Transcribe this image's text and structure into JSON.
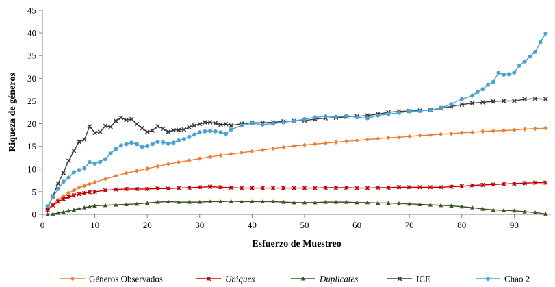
{
  "chart_data": {
    "type": "line",
    "title": "",
    "xlabel": "Esfuerzo de Muestreo",
    "ylabel": "Riqueza de géneros",
    "xlim": [
      0,
      97
    ],
    "ylim": [
      0,
      45
    ],
    "xticks": [
      0,
      10,
      20,
      30,
      40,
      50,
      60,
      70,
      80,
      90
    ],
    "yticks": [
      0,
      5,
      10,
      15,
      20,
      25,
      30,
      35,
      40,
      45
    ],
    "grid": false,
    "legend_position": "bottom",
    "series": [
      {
        "name": "Géneros Observados",
        "italic": false,
        "color": "#ED7D31",
        "marker": "diamond",
        "x": [
          1,
          2,
          3,
          4,
          5,
          6,
          7,
          8,
          9,
          10,
          12,
          14,
          16,
          18,
          20,
          22,
          24,
          26,
          28,
          30,
          32,
          34,
          36,
          38,
          40,
          42,
          44,
          46,
          48,
          50,
          52,
          54,
          56,
          58,
          60,
          62,
          64,
          66,
          68,
          70,
          72,
          74,
          76,
          78,
          80,
          82,
          84,
          86,
          88,
          90,
          92,
          94,
          96
        ],
        "y": [
          1,
          2.2,
          3.2,
          4,
          4.7,
          5.3,
          5.9,
          6.3,
          6.7,
          7.1,
          7.8,
          8.5,
          9.1,
          9.6,
          10.1,
          10.6,
          11.1,
          11.5,
          11.9,
          12.3,
          12.7,
          13,
          13.3,
          13.6,
          13.9,
          14.2,
          14.5,
          14.8,
          15.1,
          15.3,
          15.5,
          15.7,
          15.9,
          16.1,
          16.3,
          16.5,
          16.7,
          16.9,
          17,
          17.2,
          17.4,
          17.5,
          17.7,
          17.8,
          18,
          18.1,
          18.3,
          18.4,
          18.5,
          18.6,
          18.8,
          18.9,
          19
        ]
      },
      {
        "name": "Uniques",
        "italic": true,
        "color": "#C00000",
        "marker": "star",
        "x": [
          1,
          2,
          3,
          4,
          5,
          6,
          7,
          8,
          9,
          10,
          12,
          14,
          16,
          18,
          20,
          22,
          24,
          26,
          28,
          30,
          32,
          34,
          36,
          38,
          40,
          42,
          44,
          46,
          48,
          50,
          52,
          54,
          56,
          58,
          60,
          62,
          64,
          66,
          68,
          70,
          72,
          74,
          76,
          78,
          80,
          82,
          84,
          86,
          88,
          90,
          92,
          94,
          96
        ],
        "y": [
          1,
          2,
          2.8,
          3.4,
          3.9,
          4.2,
          4.5,
          4.7,
          4.9,
          5,
          5.3,
          5.5,
          5.6,
          5.6,
          5.6,
          5.7,
          5.7,
          5.8,
          5.9,
          6,
          6.1,
          6,
          5.9,
          5.8,
          5.8,
          5.8,
          5.8,
          5.8,
          5.8,
          5.8,
          5.8,
          5.9,
          5.9,
          5.9,
          5.8,
          5.8,
          5.9,
          5.9,
          6,
          6,
          6,
          6,
          6,
          6.1,
          6.2,
          6.4,
          6.5,
          6.6,
          6.7,
          6.8,
          6.9,
          7,
          7
        ]
      },
      {
        "name": "Duplicates",
        "italic": true,
        "color": "#375623",
        "marker": "triangle",
        "x": [
          1,
          2,
          3,
          4,
          5,
          6,
          7,
          8,
          9,
          10,
          12,
          14,
          16,
          18,
          20,
          22,
          24,
          26,
          28,
          30,
          32,
          34,
          36,
          38,
          40,
          42,
          44,
          46,
          48,
          50,
          52,
          54,
          56,
          58,
          60,
          62,
          64,
          66,
          68,
          70,
          72,
          74,
          76,
          78,
          80,
          82,
          84,
          86,
          88,
          90,
          92,
          94,
          96
        ],
        "y": [
          0,
          0.1,
          0.3,
          0.5,
          0.8,
          1,
          1.3,
          1.5,
          1.7,
          1.9,
          2,
          2.1,
          2.2,
          2.3,
          2.5,
          2.7,
          2.8,
          2.7,
          2.7,
          2.7,
          2.8,
          2.8,
          2.9,
          2.8,
          2.8,
          2.8,
          2.8,
          2.7,
          2.6,
          2.6,
          2.6,
          2.7,
          2.7,
          2.7,
          2.6,
          2.6,
          2.5,
          2.5,
          2.4,
          2.3,
          2.2,
          2.1,
          2,
          1.9,
          1.7,
          1.5,
          1.2,
          1,
          0.9,
          0.8,
          0.6,
          0.4,
          0.1
        ]
      },
      {
        "name": "ICE",
        "italic": false,
        "color": "#3A3A3A",
        "marker": "x",
        "x": [
          1,
          2,
          3,
          4,
          5,
          6,
          7,
          8,
          9,
          10,
          11,
          12,
          13,
          14,
          15,
          16,
          17,
          18,
          19,
          20,
          21,
          22,
          23,
          24,
          25,
          26,
          27,
          28,
          29,
          30,
          31,
          32,
          33,
          34,
          35,
          36,
          38,
          40,
          42,
          44,
          46,
          48,
          50,
          52,
          54,
          56,
          58,
          60,
          62,
          64,
          66,
          68,
          70,
          72,
          74,
          76,
          78,
          80,
          82,
          84,
          86,
          88,
          90,
          92,
          94,
          96
        ],
        "y": [
          1.5,
          4,
          6.8,
          9.2,
          11.8,
          14,
          16,
          16.5,
          19.4,
          18,
          18.2,
          19.5,
          19.3,
          20.6,
          21.3,
          20.8,
          21,
          19.9,
          19,
          18.2,
          18.5,
          19.4,
          18.9,
          18.2,
          18.6,
          18.6,
          18.7,
          19.2,
          19.6,
          19.9,
          20.3,
          20.3,
          20.1,
          19.8,
          19.9,
          19.6,
          20,
          20.2,
          20.2,
          20.3,
          20.5,
          20.6,
          20.7,
          21,
          21.2,
          21.3,
          21.5,
          21.6,
          21.8,
          22.1,
          22.5,
          22.7,
          22.8,
          22.9,
          23,
          23.4,
          23.8,
          24.2,
          24.5,
          24.7,
          24.9,
          25,
          25,
          25.4,
          25.5,
          25.4
        ]
      },
      {
        "name": "Chao 2",
        "italic": false,
        "color": "#4BA3D3",
        "marker": "circle",
        "x": [
          1,
          2,
          3,
          4,
          5,
          6,
          7,
          8,
          9,
          10,
          11,
          12,
          13,
          14,
          15,
          16,
          17,
          18,
          19,
          20,
          21,
          22,
          23,
          24,
          25,
          26,
          27,
          28,
          29,
          30,
          31,
          32,
          33,
          34,
          35,
          36,
          38,
          40,
          42,
          44,
          46,
          48,
          50,
          52,
          54,
          56,
          58,
          60,
          62,
          64,
          66,
          68,
          70,
          72,
          74,
          76,
          78,
          80,
          82,
          83,
          84,
          85,
          86,
          87,
          88,
          89,
          90,
          91,
          92,
          93,
          94,
          95,
          96
        ],
        "y": [
          1.8,
          3.8,
          5.6,
          7.2,
          8.1,
          9.3,
          9.8,
          10.2,
          11.5,
          11.2,
          11.6,
          12.2,
          13.4,
          14.4,
          15.2,
          15.5,
          15.8,
          15.5,
          14.9,
          15.1,
          15.5,
          16,
          15.9,
          15.6,
          15.8,
          16.3,
          16.6,
          17.1,
          17.6,
          18.1,
          18.3,
          18.4,
          18.3,
          18.1,
          17.8,
          18.7,
          19.6,
          20.1,
          19.8,
          20,
          20.3,
          20.6,
          21,
          21.4,
          21.6,
          21.5,
          21.7,
          21.4,
          21.2,
          21.8,
          22.1,
          22.4,
          22.7,
          22.8,
          23,
          23.5,
          24.3,
          25.4,
          26.2,
          27,
          27.6,
          28.6,
          29.2,
          31.2,
          30.8,
          30.9,
          31.3,
          32.8,
          33.7,
          34.8,
          35.8,
          38,
          39.9
        ]
      }
    ]
  }
}
